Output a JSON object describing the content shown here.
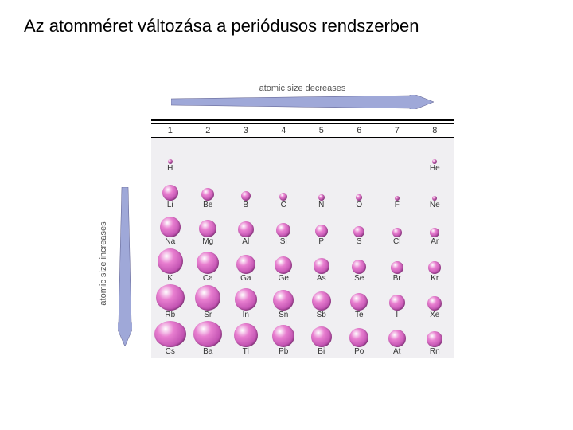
{
  "title": "Az atomméret változása a periódusos rendszerben",
  "topArrowLabel": "atomic size decreases",
  "leftArrowLabel": "atomic size increases",
  "arrowFill": "#9fa8d8",
  "arrowStroke": "#5a5a8a",
  "atomGradient": {
    "light": "#ffffff",
    "mid": "#e87fd0",
    "dark": "#c050b0",
    "deep": "#803080"
  },
  "tableBg": "#f0eff2",
  "groupHeaders": [
    "1",
    "2",
    "3",
    "4",
    "5",
    "6",
    "7",
    "8"
  ],
  "periods": [
    [
      {
        "sym": "H",
        "r": 3
      },
      null,
      null,
      null,
      null,
      null,
      null,
      {
        "sym": "He",
        "r": 3
      }
    ],
    [
      {
        "sym": "Li",
        "r": 10
      },
      {
        "sym": "Be",
        "r": 8
      },
      {
        "sym": "B",
        "r": 6
      },
      {
        "sym": "C",
        "r": 5
      },
      {
        "sym": "N",
        "r": 4
      },
      {
        "sym": "O",
        "r": 4
      },
      {
        "sym": "F",
        "r": 3
      },
      {
        "sym": "Ne",
        "r": 3
      }
    ],
    [
      {
        "sym": "Na",
        "r": 13
      },
      {
        "sym": "Mg",
        "r": 11
      },
      {
        "sym": "Al",
        "r": 10
      },
      {
        "sym": "Si",
        "r": 9
      },
      {
        "sym": "P",
        "r": 8
      },
      {
        "sym": "S",
        "r": 7
      },
      {
        "sym": "Cl",
        "r": 6
      },
      {
        "sym": "Ar",
        "r": 6
      }
    ],
    [
      {
        "sym": "K",
        "r": 16
      },
      {
        "sym": "Ca",
        "r": 14
      },
      {
        "sym": "Ga",
        "r": 12
      },
      {
        "sym": "Ge",
        "r": 11
      },
      {
        "sym": "As",
        "r": 10
      },
      {
        "sym": "Se",
        "r": 9
      },
      {
        "sym": "Br",
        "r": 8
      },
      {
        "sym": "Kr",
        "r": 8
      }
    ],
    [
      {
        "sym": "Rb",
        "r": 18
      },
      {
        "sym": "Sr",
        "r": 16
      },
      {
        "sym": "In",
        "r": 14
      },
      {
        "sym": "Sn",
        "r": 13
      },
      {
        "sym": "Sb",
        "r": 12
      },
      {
        "sym": "Te",
        "r": 11
      },
      {
        "sym": "I",
        "r": 10
      },
      {
        "sym": "Xe",
        "r": 9
      }
    ],
    [
      {
        "sym": "Cs",
        "r": 20
      },
      {
        "sym": "Ba",
        "r": 18
      },
      {
        "sym": "Tl",
        "r": 15
      },
      {
        "sym": "Pb",
        "r": 14
      },
      {
        "sym": "Bi",
        "r": 13
      },
      {
        "sym": "Po",
        "r": 12
      },
      {
        "sym": "At",
        "r": 11
      },
      {
        "sym": "Rn",
        "r": 10
      }
    ]
  ]
}
